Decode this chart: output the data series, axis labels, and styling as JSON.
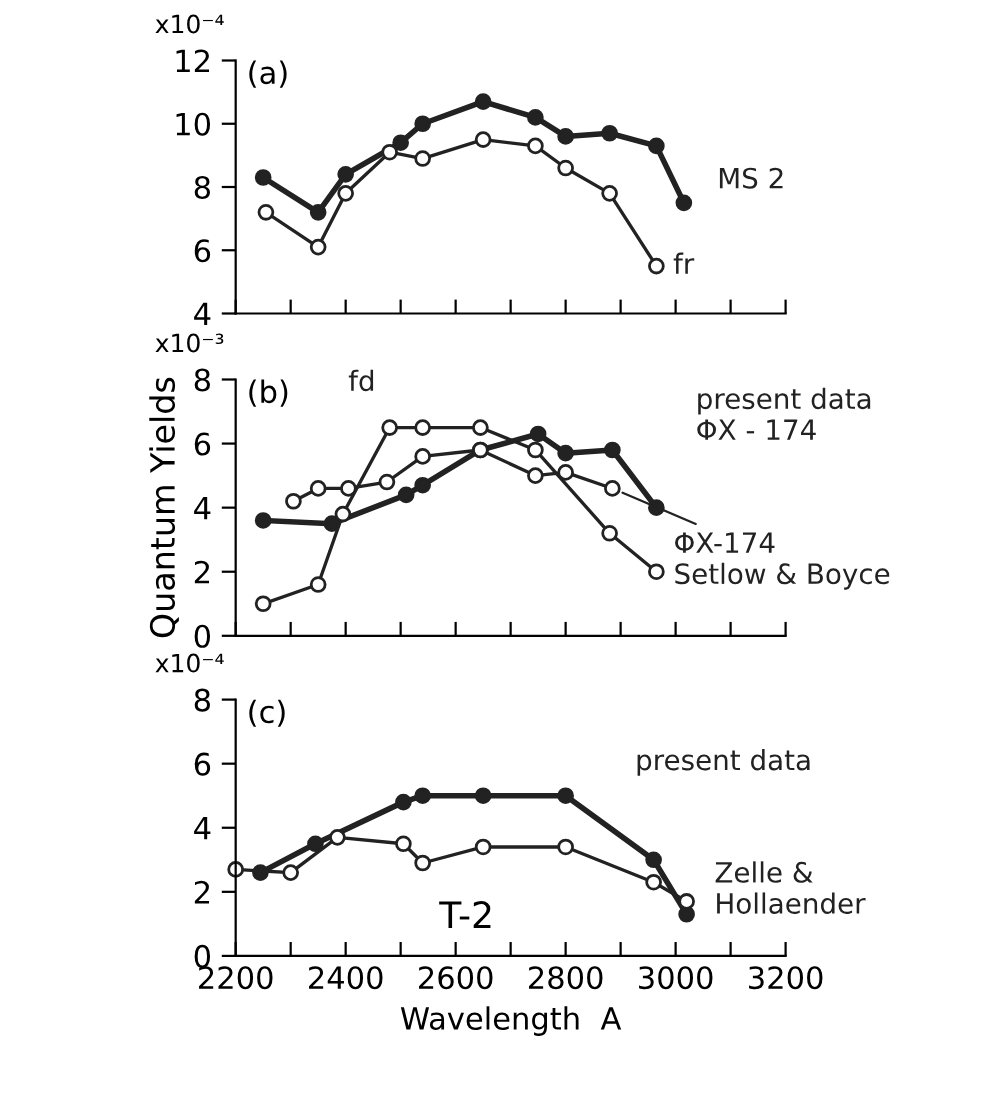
{
  "chart_data": [
    {
      "type": "line",
      "title": "(a)",
      "xlim": [
        2200,
        3200
      ],
      "ylim": [
        4,
        12
      ],
      "xticks": [
        {
          "value": 2200,
          "label": null
        },
        {
          "value": 2300,
          "label": null
        },
        {
          "value": 2400,
          "label": null
        },
        {
          "value": 2500,
          "label": null
        },
        {
          "value": 2600,
          "label": null
        },
        {
          "value": 2700,
          "label": null
        },
        {
          "value": 2800,
          "label": null
        },
        {
          "value": 2900,
          "label": null
        },
        {
          "value": 3000,
          "label": null
        },
        {
          "value": 3100,
          "label": null
        },
        {
          "value": 3200,
          "label": null
        }
      ],
      "yticks": [
        4,
        6,
        8,
        10,
        12
      ],
      "annotations": [
        "x10⁻⁴"
      ],
      "tick_labels": "y",
      "grid": false,
      "legend": false,
      "marker": "circle",
      "line_style": "solid",
      "series": [
        {
          "name": "MS 2",
          "color": "#222222",
          "x": [
            2250,
            2350,
            2400,
            2500,
            2540,
            2650,
            2745,
            2800,
            2880,
            2965,
            3015
          ],
          "values": [
            8.3,
            7.2,
            8.4,
            9.4,
            10.0,
            10.7,
            10.2,
            9.6,
            9.7,
            9.3,
            7.5
          ]
        },
        {
          "name": "fr",
          "color": "#222222",
          "x": [
            2255,
            2350,
            2400,
            2480,
            2540,
            2650,
            2745,
            2800,
            2880,
            2965
          ],
          "values": [
            7.2,
            6.1,
            7.8,
            9.1,
            8.9,
            9.5,
            9.3,
            8.6,
            7.8,
            5.5
          ]
        }
      ]
    },
    {
      "type": "line",
      "title": "(b)",
      "ylabel": "Quantum Yields",
      "xlim": [
        2200,
        3200
      ],
      "ylim": [
        0,
        8
      ],
      "xticks": [
        {
          "value": 2200,
          "label": null
        },
        {
          "value": 2300,
          "label": null
        },
        {
          "value": 2400,
          "label": null
        },
        {
          "value": 2500,
          "label": null
        },
        {
          "value": 2600,
          "label": null
        },
        {
          "value": 2700,
          "label": null
        },
        {
          "value": 2800,
          "label": null
        },
        {
          "value": 2900,
          "label": null
        },
        {
          "value": 3000,
          "label": null
        },
        {
          "value": 3100,
          "label": null
        },
        {
          "value": 3200,
          "label": null
        }
      ],
      "yticks": [
        0,
        2,
        4,
        6,
        8
      ],
      "annotations": [
        "x10⁻³"
      ],
      "tick_labels": "y",
      "grid": false,
      "marker": "circle",
      "line_style": "solid",
      "series": [
        {
          "name": "present data\nΦX - 174",
          "color": "#222222",
          "x": [
            2250,
            2375,
            2510,
            2540,
            2645,
            2750,
            2800,
            2885,
            2965
          ],
          "values": [
            3.6,
            3.5,
            4.4,
            4.7,
            5.8,
            6.3,
            5.7,
            5.8,
            4.0
          ]
        },
        {
          "name": "ΦX-174\nSetlow & Boyce",
          "color": "#222222",
          "x": [
            2305,
            2350,
            2405,
            2475,
            2540,
            2645,
            2745,
            2800,
            2885
          ],
          "values": [
            4.2,
            4.6,
            4.6,
            4.8,
            5.6,
            5.8,
            5.0,
            5.1,
            4.6
          ]
        },
        {
          "name": "fd",
          "color": "#222222",
          "x": [
            2250,
            2350,
            2395,
            2480,
            2540,
            2645,
            2745,
            2880,
            2965
          ],
          "values": [
            1.0,
            1.6,
            3.8,
            6.5,
            6.5,
            6.5,
            5.8,
            3.2,
            2.0
          ]
        }
      ]
    },
    {
      "type": "line",
      "xlabel": "Wavelength  A",
      "xlim": [
        2200,
        3200
      ],
      "ylim": [
        0,
        8
      ],
      "xticks": [
        2200,
        {
          "value": 2300,
          "label": null
        },
        2400,
        {
          "value": 2500,
          "label": null
        },
        2600,
        {
          "value": 2700,
          "label": null
        },
        2800,
        {
          "value": 2900,
          "label": null
        },
        3000,
        {
          "value": 3100,
          "label": null
        },
        3200
      ],
      "yticks": [
        0,
        2,
        4,
        6,
        8
      ],
      "title": "(c)",
      "annotations": [
        "x10⁻⁴",
        "T-2"
      ],
      "grid": false,
      "legend": false,
      "marker": "circle",
      "line_style": "solid",
      "series": [
        {
          "name": "present data",
          "color": "#222222",
          "x": [
            2245,
            2345,
            2505,
            2540,
            2650,
            2800,
            2960,
            3020
          ],
          "values": [
            2.6,
            3.5,
            4.8,
            5.0,
            5.0,
            5.0,
            3.0,
            1.3
          ]
        },
        {
          "name": "Zelle &\nHollaender",
          "color": "#222222",
          "x": [
            2200,
            2300,
            2385,
            2505,
            2540,
            2650,
            2800,
            2960,
            3020
          ],
          "values": [
            2.7,
            2.6,
            3.7,
            3.5,
            2.9,
            3.4,
            3.4,
            2.3,
            1.7
          ]
        }
      ]
    }
  ]
}
